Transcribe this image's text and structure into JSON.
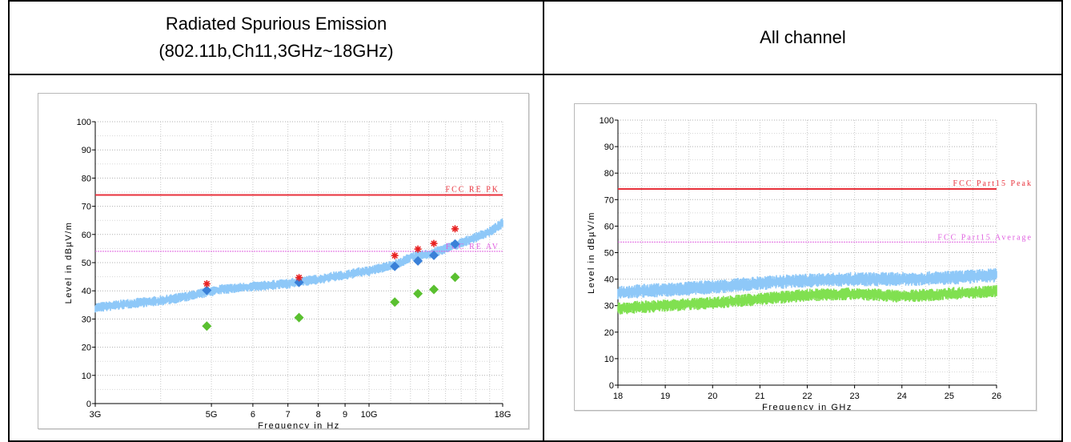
{
  "header": {
    "left_title_line1": "Radiated Spurious Emission",
    "left_title_line2": "(802.11b,Ch11,3GHz~18GHz)",
    "right_title": "All channel"
  },
  "chart_data": [
    {
      "type": "scatter",
      "xlabel": "Frequency in Hz",
      "ylabel": "Level in dBµV/m",
      "xscale": "log",
      "xlim": [
        3,
        18
      ],
      "ylim": [
        0,
        100
      ],
      "yticks": [
        0,
        10,
        20,
        30,
        40,
        50,
        60,
        70,
        80,
        90,
        100
      ],
      "xticks": [
        {
          "v": 3,
          "label": "3G"
        },
        {
          "v": 5,
          "label": "5G"
        },
        {
          "v": 6,
          "label": "6"
        },
        {
          "v": 7,
          "label": "7"
        },
        {
          "v": 8,
          "label": "8"
        },
        {
          "v": 9,
          "label": "9"
        },
        {
          "v": 10,
          "label": "10G"
        },
        {
          "v": 18,
          "label": "18G"
        }
      ],
      "grid": true,
      "colors": {
        "trace": "#8ec8f8",
        "peak_limit": "#e8323c",
        "avg_limit": "#e060e0",
        "peak_marker": "#e82020",
        "qp_marker": "#3a80d8",
        "avg_marker": "#5ac030"
      },
      "limits": [
        {
          "name": "FCC RE PK",
          "value": 74
        },
        {
          "name": "FCC RE AV",
          "value": 54
        }
      ],
      "trace": {
        "x": [
          3,
          3.5,
          4,
          4.5,
          4.9,
          5.2,
          5.6,
          6,
          6.5,
          7,
          7.5,
          8,
          8.5,
          9,
          9.5,
          10,
          10.5,
          11,
          11.5,
          12,
          13,
          14,
          15,
          16,
          17,
          18
        ],
        "y": [
          34,
          35.5,
          36.5,
          38,
          39.5,
          40.5,
          41,
          41.5,
          42,
          42.5,
          43.5,
          44,
          45,
          45.5,
          46.5,
          47,
          48,
          49,
          50,
          52,
          53,
          55,
          57,
          59,
          61,
          64
        ]
      },
      "series": [
        {
          "name": "",
          "marker": "star",
          "x": [
            4.9,
            7.35,
            11.2,
            12.4,
            13.3,
            14.6
          ],
          "y": [
            42.5,
            44.7,
            52.5,
            54.8,
            56.8,
            62
          ]
        },
        {
          "name": "",
          "marker": "diamond",
          "x": [
            4.9,
            7.35,
            11.2,
            12.4,
            13.3,
            14.6
          ],
          "y": [
            40.2,
            43,
            48.7,
            50.6,
            52.6,
            56.6
          ]
        },
        {
          "name": "",
          "marker": "diamond",
          "x": [
            4.9,
            7.35,
            11.2,
            12.4,
            13.3,
            14.6
          ],
          "y": [
            27.5,
            30.5,
            36,
            39,
            40.5,
            44.8
          ]
        }
      ]
    },
    {
      "type": "line",
      "xlabel": "Frequency in GHz",
      "ylabel": "Level in dBµV/m",
      "xlim": [
        18,
        26
      ],
      "ylim": [
        0,
        100
      ],
      "yticks": [
        0,
        10,
        20,
        30,
        40,
        50,
        60,
        70,
        80,
        90,
        100
      ],
      "xticks": [
        {
          "v": 18,
          "label": "18"
        },
        {
          "v": 19,
          "label": "19"
        },
        {
          "v": 20,
          "label": "20"
        },
        {
          "v": 21,
          "label": "21"
        },
        {
          "v": 22,
          "label": "22"
        },
        {
          "v": 23,
          "label": "23"
        },
        {
          "v": 24,
          "label": "24"
        },
        {
          "v": 25,
          "label": "25"
        },
        {
          "v": 26,
          "label": "26"
        }
      ],
      "grid": true,
      "colors": {
        "peak_trace": "#8ec8f8",
        "avg_trace": "#80e050",
        "peak_limit": "#e8323c",
        "avg_limit": "#e060e0"
      },
      "limits": [
        {
          "name": "FCC Part15 Peak",
          "value": 74
        },
        {
          "name": "FCC Part15 Average",
          "value": 54
        }
      ],
      "traces": [
        {
          "x": [
            18,
            19,
            20,
            21,
            22,
            23,
            24,
            25,
            26
          ],
          "y": [
            35,
            36,
            37,
            38.5,
            39.5,
            40,
            40,
            40.5,
            41.5
          ]
        },
        {
          "x": [
            18,
            19,
            20,
            21,
            22,
            23,
            24,
            25,
            26
          ],
          "y": [
            29,
            30,
            31,
            32.5,
            34,
            34.5,
            33.5,
            34.5,
            35.5
          ]
        }
      ]
    }
  ]
}
